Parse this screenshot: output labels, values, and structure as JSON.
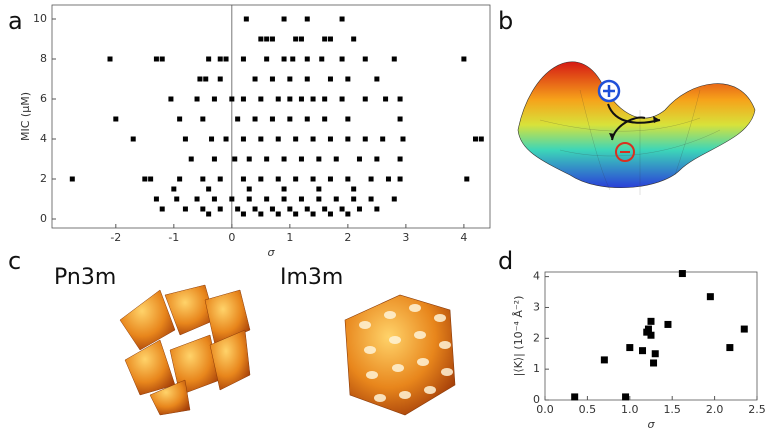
{
  "panel_labels": [
    "a",
    "b",
    "c",
    "d"
  ],
  "structure_labels": [
    "Pn3m",
    "Im3m"
  ],
  "chart_data": [
    {
      "type": "scatter",
      "xlabel": "σ",
      "ylabel": "MIC (μM)",
      "color": "#000000",
      "zero_line": true,
      "xlim": [
        -3.1,
        4.45
      ],
      "ylim": [
        -0.45,
        10.7
      ],
      "xticks": [
        -2,
        -1,
        0,
        1,
        2,
        3,
        4
      ],
      "yticks": [
        0,
        2,
        4,
        6,
        8,
        10
      ],
      "x": [
        0.25,
        0.9,
        1.3,
        1.9,
        0.5,
        0.6,
        0.7,
        1.1,
        1.2,
        1.6,
        1.7,
        2.1,
        -2.1,
        -1.3,
        -1.2,
        -0.4,
        -0.2,
        -0.1,
        0.2,
        0.6,
        0.9,
        1.05,
        1.3,
        1.55,
        1.9,
        2.3,
        2.8,
        4.0,
        -0.55,
        -0.45,
        -0.2,
        0.4,
        0.7,
        1.0,
        1.3,
        1.7,
        2.0,
        2.5,
        -1.05,
        -0.6,
        -0.3,
        0,
        0.2,
        0.5,
        0.8,
        1.0,
        1.2,
        1.4,
        1.6,
        1.9,
        2.3,
        2.65,
        2.9,
        -2.0,
        -0.9,
        -0.5,
        0.1,
        0.4,
        0.7,
        1.0,
        1.3,
        1.6,
        2.0,
        2.9,
        -1.7,
        -0.8,
        -0.35,
        -0.1,
        0.2,
        0.5,
        0.8,
        1.1,
        1.4,
        1.7,
        2.0,
        2.3,
        2.6,
        2.95,
        4.2,
        4.3,
        -0.7,
        -0.3,
        0.05,
        0.3,
        0.6,
        0.9,
        1.2,
        1.5,
        1.8,
        2.2,
        2.5,
        2.9,
        -2.75,
        -1.5,
        -1.4,
        -0.9,
        -0.5,
        -0.2,
        0.2,
        0.5,
        0.8,
        1.1,
        1.4,
        1.7,
        2.0,
        2.4,
        2.7,
        2.9,
        4.05,
        -1.0,
        -0.4,
        0.3,
        0.9,
        1.5,
        2.1,
        -1.3,
        -0.95,
        -0.6,
        -0.3,
        0,
        0.3,
        0.6,
        0.9,
        1.2,
        1.5,
        1.8,
        2.1,
        2.4,
        2.8,
        -1.2,
        -0.8,
        -0.5,
        -0.2,
        0.1,
        0.4,
        0.7,
        1.0,
        1.3,
        1.6,
        1.9,
        2.2,
        2.5,
        -0.4,
        0.2,
        0.5,
        0.8,
        1.1,
        1.4,
        1.7,
        2.0
      ],
      "y": [
        10,
        10,
        10,
        10,
        9,
        9,
        9,
        9,
        9,
        9,
        9,
        9,
        8,
        8,
        8,
        8,
        8,
        8,
        8,
        8,
        8,
        8,
        8,
        8,
        8,
        8,
        8,
        8,
        7,
        7,
        7,
        7,
        7,
        7,
        7,
        7,
        7,
        7,
        6,
        6,
        6,
        6,
        6,
        6,
        6,
        6,
        6,
        6,
        6,
        6,
        6,
        6,
        6,
        5,
        5,
        5,
        5,
        5,
        5,
        5,
        5,
        5,
        5,
        5,
        4,
        4,
        4,
        4,
        4,
        4,
        4,
        4,
        4,
        4,
        4,
        4,
        4,
        4,
        4,
        4,
        3,
        3,
        3,
        3,
        3,
        3,
        3,
        3,
        3,
        3,
        3,
        3,
        2,
        2,
        2,
        2,
        2,
        2,
        2,
        2,
        2,
        2,
        2,
        2,
        2,
        2,
        2,
        2,
        2,
        1.5,
        1.5,
        1.5,
        1.5,
        1.5,
        1.5,
        1,
        1,
        1,
        1,
        1,
        1,
        1,
        1,
        1,
        1,
        1,
        1,
        1,
        1,
        0.5,
        0.5,
        0.5,
        0.5,
        0.5,
        0.5,
        0.5,
        0.5,
        0.5,
        0.5,
        0.5,
        0.5,
        0.5,
        0.25,
        0.25,
        0.25,
        0.25,
        0.25,
        0.25,
        0.25,
        0.25
      ]
    },
    {
      "type": "scatter",
      "xlabel": "σ",
      "ylabel": "|⟨K⟩| (10⁻⁴ Å⁻²)",
      "color": "#000000",
      "zero_line": false,
      "xlim": [
        0,
        2.5
      ],
      "ylim": [
        0,
        4.15
      ],
      "xticks": [
        {
          "value": 0,
          "label": "0.0"
        },
        {
          "value": 0.5,
          "label": "0.5"
        },
        {
          "value": 1,
          "label": "1.0"
        },
        {
          "value": 1.5,
          "label": "1.5"
        },
        {
          "value": 2,
          "label": "2.0"
        },
        {
          "value": 2.5,
          "label": "2.5"
        }
      ],
      "yticks": [
        0,
        1,
        2,
        3,
        4
      ],
      "x": [
        0.35,
        0.7,
        0.95,
        1.0,
        1.15,
        1.2,
        1.22,
        1.25,
        1.25,
        1.28,
        1.3,
        1.45,
        1.62,
        1.95,
        2.18,
        2.35
      ],
      "y": [
        0.1,
        1.3,
        0.1,
        1.7,
        1.6,
        2.2,
        2.3,
        2.1,
        2.55,
        1.2,
        1.5,
        2.45,
        4.1,
        3.35,
        1.7,
        2.3
      ]
    }
  ]
}
